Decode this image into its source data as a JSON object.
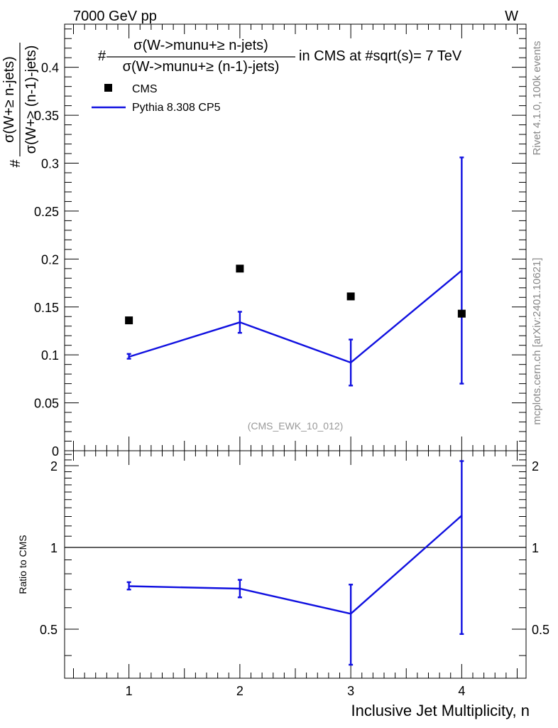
{
  "header": {
    "left_label": "7000 GeV pp",
    "right_label": "W"
  },
  "side_labels": {
    "rivet": "Rivet 4.1.0,  100k events",
    "source": "mcplots.cern.ch [arXiv:2401.10621]"
  },
  "title": {
    "prefix": "#",
    "numerator": "σ(W->munu+≥ n-jets)",
    "denominator": "σ(W->munu+≥ (n-1)-jets)",
    "suffix": "in CMS at #sqrt(s)= 7 TeV"
  },
  "ylabel": {
    "prefix": "#",
    "numerator": "σ(W+≥ n-jets)",
    "denominator": "σ(W+≥ (n-1)-jets)"
  },
  "analysis_tag": "(CMS_EWK_10_012)",
  "colors": {
    "mc": "#1010e0",
    "data": "#000000",
    "side_text": "#888888"
  },
  "chart_data": [
    {
      "type": "scatter",
      "panel": "main",
      "xlabel": "Inclusive Jet Multiplicity, n",
      "xlim": [
        0.42,
        4.58
      ],
      "ylim": [
        0,
        0.445
      ],
      "yticks": [
        0,
        0.05,
        0.1,
        0.15,
        0.2,
        0.25,
        0.3,
        0.35,
        0.4
      ],
      "ytick_labels": [
        "0",
        "0.05",
        "0.1",
        "0.15",
        "0.2",
        "0.25",
        "0.3",
        "0.35",
        "0.4"
      ],
      "legend": {
        "placement": "top-left",
        "entries": [
          "CMS",
          "Pythia 8.308 CP5"
        ]
      },
      "series": [
        {
          "name": "CMS",
          "style": "markers",
          "x": [
            1,
            2,
            3,
            4
          ],
          "y": [
            0.136,
            0.19,
            0.161,
            0.143
          ]
        },
        {
          "name": "Pythia 8.308 CP5",
          "style": "line",
          "x": [
            1,
            2,
            3,
            4
          ],
          "y": [
            0.098,
            0.134,
            0.092,
            0.188
          ],
          "err_low": [
            0.096,
            0.123,
            0.068,
            0.07
          ],
          "err_high": [
            0.101,
            0.145,
            0.116,
            0.306
          ]
        }
      ]
    },
    {
      "type": "line",
      "panel": "ratio",
      "ylabel": "Ratio to CMS",
      "xlabel": "Inclusive Jet Multiplicity, n",
      "xlim": [
        0.42,
        4.58
      ],
      "ylim": [
        0.33,
        2.27
      ],
      "yscale": "log",
      "xticks": [
        1,
        2,
        3,
        4
      ],
      "xtick_labels": [
        "1",
        "2",
        "3",
        "4"
      ],
      "yticks": [
        0.5,
        1,
        2
      ],
      "ytick_labels": [
        "0.5",
        "1",
        "2"
      ],
      "reference_line": 1,
      "series": [
        {
          "name": "Pythia 8.308 CP5 / CMS",
          "x": [
            1,
            2,
            3,
            4
          ],
          "y": [
            0.72,
            0.705,
            0.57,
            1.31
          ],
          "err_low": [
            0.7,
            0.655,
            0.37,
            0.48
          ],
          "err_high": [
            0.745,
            0.76,
            0.73,
            2.08
          ]
        }
      ]
    }
  ]
}
